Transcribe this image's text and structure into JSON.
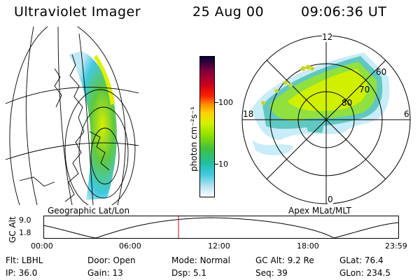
{
  "header": {
    "instrument": "Ultraviolet Imager",
    "date": "25 Aug 00",
    "time": "09:06:36 UT"
  },
  "geo_map": {
    "caption": "Geographic Lat/Lon"
  },
  "polar_plot": {
    "caption": "Apex MLat/MLT",
    "mlt_labels": {
      "top": "12",
      "bottom": "0",
      "left": "18",
      "right": "6"
    },
    "lat_labels": [
      "60",
      "70",
      "80"
    ]
  },
  "colorbar": {
    "unit_label": "photon cm⁻²s⁻¹",
    "ticks": [
      "100",
      "10"
    ],
    "colors": [
      "#000033",
      "#800040",
      "#cc0020",
      "#ff2000",
      "#ff8c00",
      "#ffd000",
      "#d8f000",
      "#90e000",
      "#40c040",
      "#20c0a0",
      "#40c8e0",
      "#b0e0f0",
      "#ffffff"
    ]
  },
  "altitude_plot": {
    "ylabel": "GC Alt",
    "yticks": [
      "9.0",
      "1.8"
    ],
    "xticks": [
      "00:00",
      "06:00",
      "12:00",
      "18:00",
      "23:59"
    ],
    "current_time_marker": "09:06"
  },
  "info": {
    "row1": [
      {
        "key": "Flt:",
        "value": "LBHL"
      },
      {
        "key": "Door:",
        "value": "Open"
      },
      {
        "key": "Mode:",
        "value": "Normal"
      },
      {
        "key": "GC Alt:",
        "value": "9.2 Re"
      },
      {
        "key": "GLat:",
        "value": "76.4"
      }
    ],
    "row2": [
      {
        "key": "IP:",
        "value": "36.0"
      },
      {
        "key": "Gain:",
        "value": "13"
      },
      {
        "key": "Dsp:",
        "value": "5.1"
      },
      {
        "key": "Seq:",
        "value": "39"
      },
      {
        "key": "GLon:",
        "value": "234.5"
      }
    ]
  }
}
